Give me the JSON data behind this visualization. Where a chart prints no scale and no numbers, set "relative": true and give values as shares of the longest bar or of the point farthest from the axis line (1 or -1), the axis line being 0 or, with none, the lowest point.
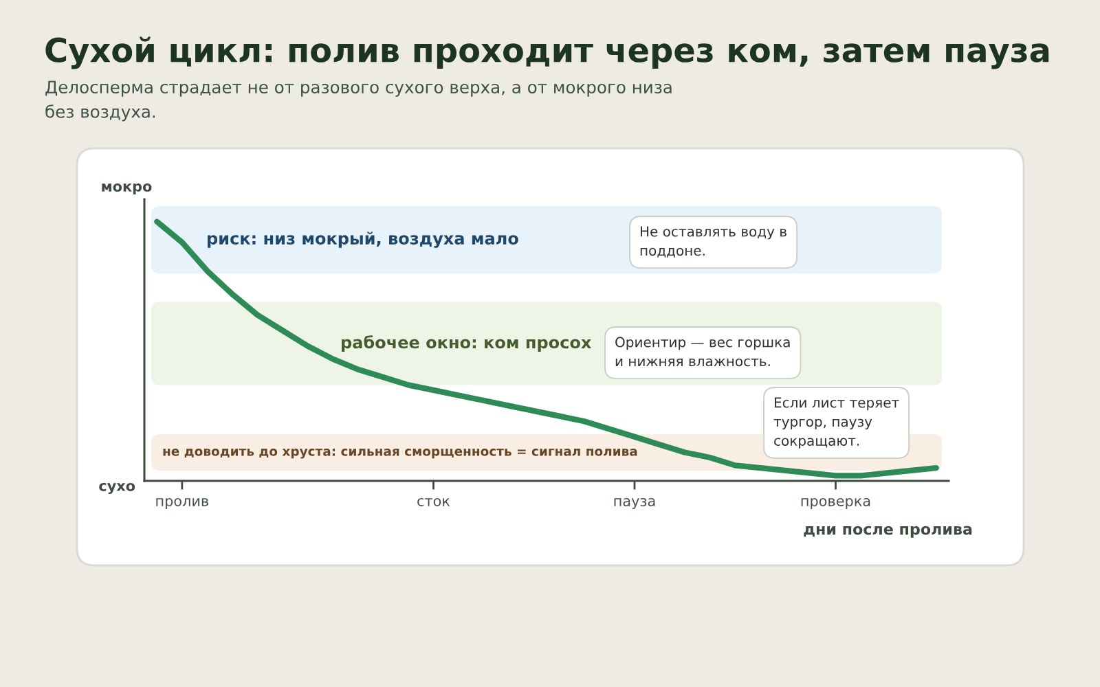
{
  "chart_data": {
    "type": "line",
    "title": "Сухой цикл: полив проходит через ком, затем пауза",
    "subtitle": "Делосперма страдает не от разового сухого верха, а от мокрого низа без воздуха.",
    "xlabel": "дни после пролива",
    "annotations": [
      "мокро",
      "сухо",
      "Не оставлять воду в поддоне.",
      "Ориентир — вес горшка и нижняя влажность.",
      "Если лист теряет тургор, паузу сокращают."
    ],
    "relative": true,
    "categories": [
      null,
      "пролив",
      null,
      null,
      null,
      null,
      null,
      null,
      null,
      null,
      null,
      "сток",
      null,
      null,
      null,
      null,
      null,
      null,
      null,
      "пауза",
      null,
      null,
      null,
      null,
      null,
      null,
      null,
      "проверка",
      null,
      null,
      null,
      null
    ],
    "series": [
      {
        "color": "#2e8b57",
        "values": [
          1.0,
          0.92,
          0.81,
          0.72,
          0.64,
          0.58,
          0.52,
          0.47,
          0.43,
          0.4,
          0.37,
          0.35,
          0.33,
          0.31,
          0.29,
          0.27,
          0.25,
          0.23,
          0.2,
          0.17,
          0.14,
          0.11,
          0.09,
          0.06,
          0.05,
          0.04,
          0.03,
          0.02,
          0.02,
          0.03,
          0.04,
          0.05
        ]
      }
    ],
    "bands": [
      {
        "axis": "y",
        "from": 0.8,
        "to": 1.06,
        "label": "риск: низ мокрый, воздуха мало",
        "color": "#e8f2fb"
      },
      {
        "axis": "y",
        "from": 0.37,
        "to": 0.69,
        "label": "рабочее окно: ком просох",
        "color": "#eef5e6"
      },
      {
        "axis": "y",
        "from": 0.04,
        "to": 0.18,
        "label": "не доводить до хруста: сильная сморщенность = сигнал полива",
        "color": "#f8eee3"
      }
    ],
    "line_style": "solid"
  }
}
